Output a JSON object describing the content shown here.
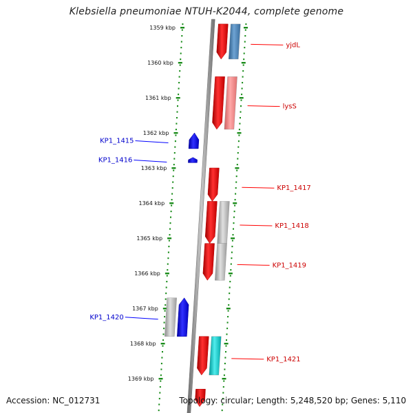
{
  "title": "Klebsiella pneumoniae NTUH-K2044, complete genome",
  "accession": "Accession: NC_012731",
  "stats": "Topology: circular; Length: 5,248,520 bp; Genes: 5,110",
  "colors": {
    "forward": "#ff0000",
    "reverse": "#0000ff",
    "forward_label": "#cc0000",
    "reverse_label": "#0000cc",
    "backbone": "#808080",
    "dots": "#1a8c1a",
    "cog_steelblue": "#4682b4",
    "cog_pink": "#f08080",
    "cog_gray": "#b0b0b0",
    "cog_cyan": "#00c8c8"
  },
  "ticks": [
    "1359 kbp",
    "1360 kbp",
    "1361 kbp",
    "1362 kbp",
    "1363 kbp",
    "1364 kbp",
    "1365 kbp",
    "1366 kbp",
    "1367 kbp",
    "1368 kbp",
    "1369 kbp"
  ],
  "genes": [
    {
      "label": "yjdL",
      "strand": "forward",
      "start_kbp": 1358.9,
      "end_kbp": 1359.9,
      "cog": "cog_steelblue"
    },
    {
      "label": "lysS",
      "strand": "forward",
      "start_kbp": 1360.4,
      "end_kbp": 1361.9,
      "cog": "cog_pink"
    },
    {
      "label": "KP1_1415",
      "strand": "reverse",
      "start_kbp": 1362.0,
      "end_kbp": 1362.45,
      "cog": ""
    },
    {
      "label": "KP1_1416",
      "strand": "reverse",
      "start_kbp": 1362.7,
      "end_kbp": 1362.85,
      "cog": ""
    },
    {
      "label": "KP1_1417",
      "strand": "forward",
      "start_kbp": 1363.0,
      "end_kbp": 1363.95,
      "cog": ""
    },
    {
      "label": "KP1_1418",
      "strand": "forward",
      "start_kbp": 1363.95,
      "end_kbp": 1365.15,
      "cog": "cog_gray"
    },
    {
      "label": "KP1_1419",
      "strand": "forward",
      "start_kbp": 1365.15,
      "end_kbp": 1366.2,
      "cog": "cog_gray"
    },
    {
      "label": "KP1_1420",
      "strand": "reverse",
      "start_kbp": 1366.7,
      "end_kbp": 1367.8,
      "cog": "cog_gray"
    },
    {
      "label": "KP1_1421",
      "strand": "forward",
      "start_kbp": 1367.8,
      "end_kbp": 1368.9,
      "cog": "cog_cyan"
    },
    {
      "label": "",
      "strand": "forward",
      "start_kbp": 1369.3,
      "end_kbp": 1369.8,
      "cog": ""
    }
  ]
}
